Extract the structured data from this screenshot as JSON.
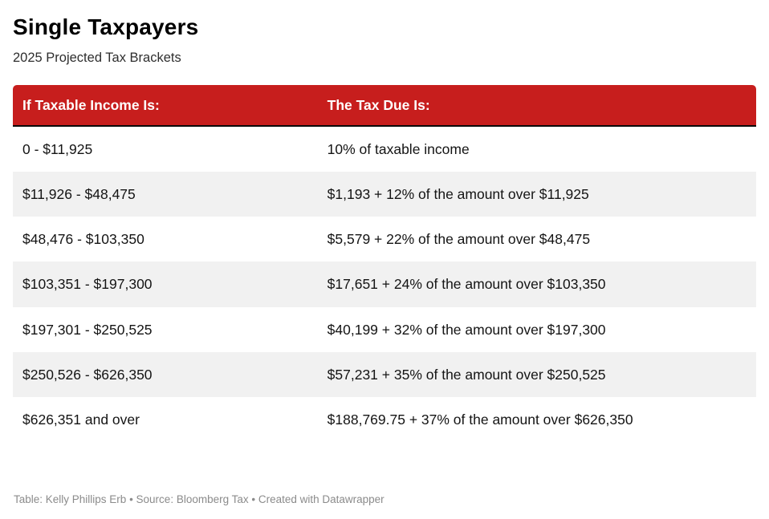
{
  "colors": {
    "header_background": "#c71e1d",
    "header_text": "#ffffff",
    "row_stripe": "#f1f1f1",
    "header_divider": "#0a0a0a",
    "footer_text": "#8b8b8b"
  },
  "header": {
    "title": "Single Taxpayers",
    "subtitle": "2025 Projected Tax Brackets"
  },
  "chart_data": {
    "type": "table",
    "title": "Single Taxpayers",
    "subtitle": "2025 Projected Tax Brackets",
    "columns": [
      "If Taxable Income Is:",
      "The Tax Due Is:"
    ],
    "rows": [
      [
        "0 - $11,925",
        "10% of taxable income"
      ],
      [
        "$11,926 - $48,475",
        "$1,193 + 12% of the amount over $11,925"
      ],
      [
        "$48,476 - $103,350",
        "$5,579 + 22% of the amount over $48,475"
      ],
      [
        "$103,351 - $197,300",
        "$17,651 + 24% of the amount over $103,350"
      ],
      [
        "$197,301 - $250,525",
        "$40,199 + 32% of the amount over $197,300"
      ],
      [
        "$250,526 - $626,350",
        "$57,231 + 35% of the amount over $250,525"
      ],
      [
        "$626,351 and over",
        "$188,769.75 + 37% of the amount over $626,350"
      ]
    ],
    "layout": {
      "striped_rows": true,
      "stripe_pattern": "even rows gray, odd rows white",
      "header_style": "red background, white bold text, black underline rule"
    }
  },
  "footer": {
    "text": "Table: Kelly Phillips Erb • Source: Bloomberg Tax • Created with Datawrapper"
  }
}
